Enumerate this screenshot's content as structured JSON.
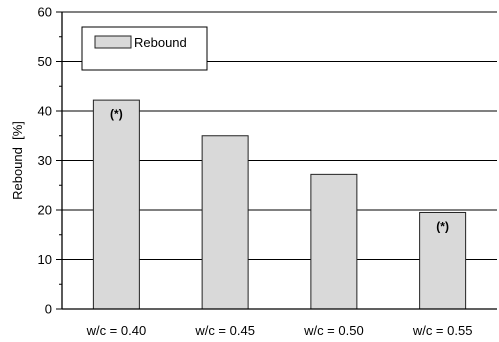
{
  "chart_data": {
    "type": "bar",
    "title": "",
    "xlabel": "",
    "ylabel": "Rebound  [%]",
    "ylim": [
      0,
      60
    ],
    "yticks": [
      0,
      10,
      20,
      30,
      40,
      50,
      60
    ],
    "grid": true,
    "legend_position": "top-left",
    "categories": [
      "w/c = 0.40",
      "w/c = 0.45",
      "w/c = 0.50",
      "w/c = 0.55"
    ],
    "series": [
      {
        "name": "Rebound",
        "values": [
          42.2,
          35.0,
          27.2,
          19.5
        ]
      }
    ],
    "annotations": [
      {
        "category_index": 0,
        "text": "(*)"
      },
      {
        "category_index": 3,
        "text": "(*)"
      }
    ],
    "colors": {
      "bar_fill": "#d9d9d9",
      "bar_stroke": "#222222",
      "grid": "#000000"
    }
  }
}
